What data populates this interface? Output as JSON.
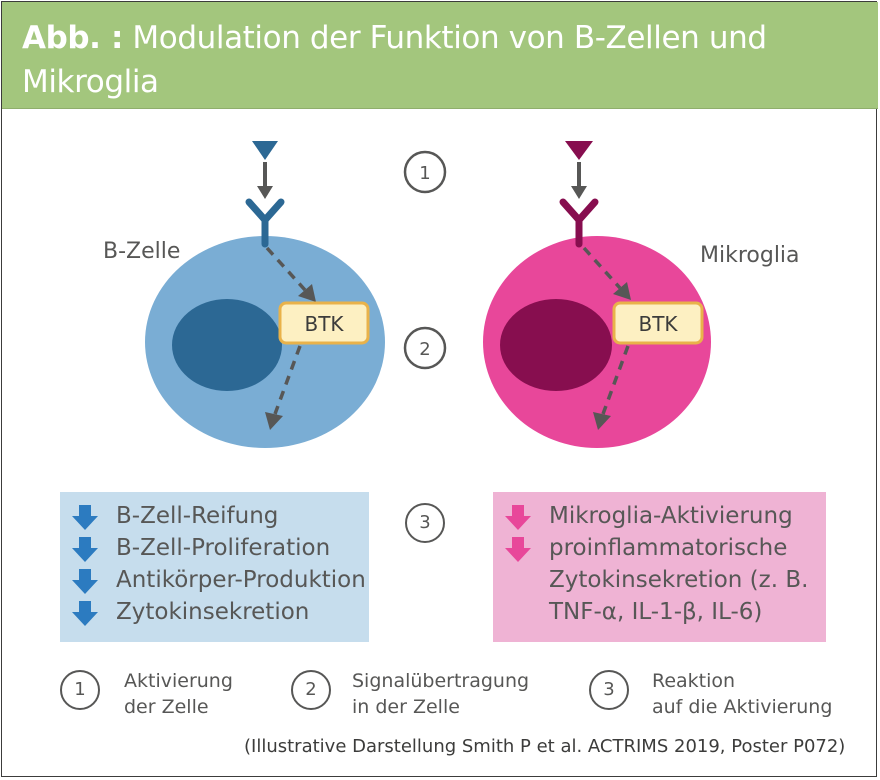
{
  "header": {
    "prefix": "Abb. :",
    "title": "Modulation der Funktion von B-Zellen und Mikroglia"
  },
  "colors": {
    "header_bg": "#a3c67d",
    "bcell": "#7aadd4",
    "bcell_nucleus": "#2c6894",
    "bcell_accent": "#2c6894",
    "microglia": "#e8479a",
    "microglia_nucleus": "#870e4f",
    "btk_fill": "#fdf0c2",
    "btk_border": "#e9b24a"
  },
  "diagram": {
    "left_cell_label": "B-Zelle",
    "right_cell_label": "Mikroglia",
    "btk_label": "BTK",
    "steps": [
      "1",
      "2",
      "3"
    ]
  },
  "bcell_effects": [
    "B-Zell-Reifung",
    "B-Zell-Proliferation",
    "Antikörper-Produktion",
    "Zytokinsekretion"
  ],
  "microglia_effects": {
    "item1": "Mikroglia-Aktivierung",
    "item2_lines": [
      "proinflammatorische",
      "Zytokinsekretion (z. B.",
      "TNF-α, IL-1-β, IL-6)"
    ]
  },
  "legend": [
    {
      "num": "1",
      "lines": [
        "Aktivierung",
        "der Zelle"
      ]
    },
    {
      "num": "2",
      "lines": [
        "Signalübertragung",
        "in der Zelle"
      ]
    },
    {
      "num": "3",
      "lines": [
        "Reaktion",
        "auf die Aktivierung"
      ]
    }
  ],
  "footnote": "(Illustrative Darstellung Smith P et al. ACTRIMS 2019, Poster P072)"
}
